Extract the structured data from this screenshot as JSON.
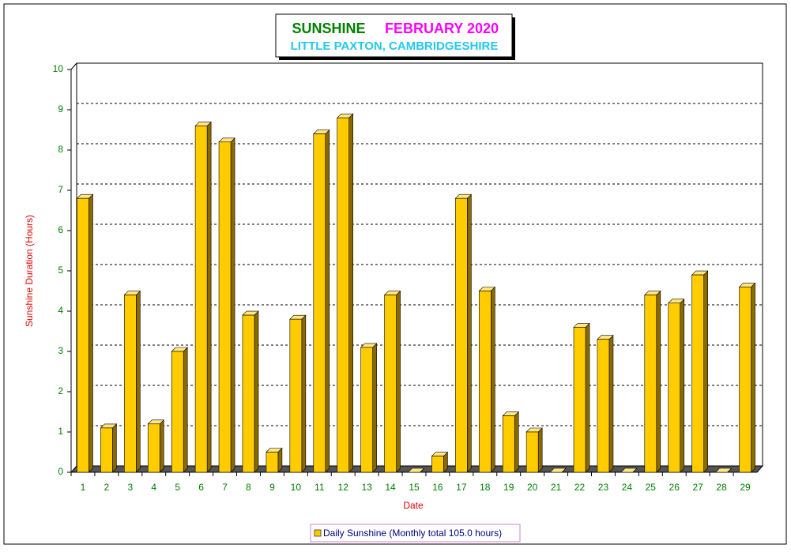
{
  "chart_data": {
    "type": "bar3d",
    "title": "SUNSHINE",
    "title_date": "FEBRUARY 2020",
    "subtitle": "LITTLE PAXTON, CAMBRIDGESHIRE",
    "x_label": "Date",
    "y_label": "Sunshine Duration (Hours)",
    "categories": [
      "1",
      "2",
      "3",
      "4",
      "5",
      "6",
      "7",
      "8",
      "9",
      "10",
      "11",
      "12",
      "13",
      "14",
      "15",
      "16",
      "17",
      "18",
      "19",
      "20",
      "21",
      "22",
      "23",
      "24",
      "25",
      "26",
      "27",
      "28",
      "29"
    ],
    "series": [
      {
        "name": "Daily Sunshine (Monthly total 105.0 hours)",
        "color": "#ffcc00",
        "values": [
          6.8,
          1.1,
          4.4,
          1.2,
          3.0,
          8.6,
          8.2,
          3.9,
          0.5,
          3.8,
          8.4,
          8.8,
          3.1,
          4.4,
          0,
          0.4,
          6.8,
          4.5,
          1.4,
          1.0,
          0,
          3.6,
          3.3,
          0,
          4.4,
          4.2,
          4.9,
          0,
          4.6
        ]
      }
    ],
    "ylim": [
      0,
      10
    ],
    "yticks": [
      0,
      1,
      2,
      3,
      4,
      5,
      6,
      7,
      8,
      9,
      10
    ],
    "grid": true
  }
}
